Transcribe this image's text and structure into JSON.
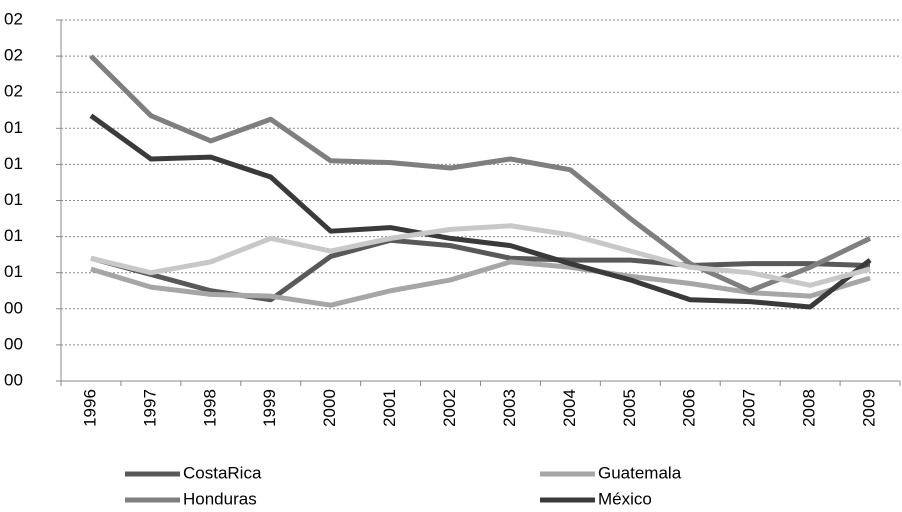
{
  "chart_data": {
    "type": "line",
    "categories": [
      "1996",
      "1997",
      "1998",
      "1999",
      "2000",
      "2001",
      "2002",
      "2003",
      "2004",
      "2005",
      "2006",
      "2007",
      "2008",
      "2009"
    ],
    "ylim": [
      0,
      2
    ],
    "yticks": [
      {
        "value": 0,
        "label": "00"
      },
      {
        "value": 0.2,
        "label": "00"
      },
      {
        "value": 0.4,
        "label": "00"
      },
      {
        "value": 0.6,
        "label": "01"
      },
      {
        "value": 0.8,
        "label": "01"
      },
      {
        "value": 1.0,
        "label": "01"
      },
      {
        "value": 1.2,
        "label": "01"
      },
      {
        "value": 1.4,
        "label": "01"
      },
      {
        "value": 1.6,
        "label": "02"
      },
      {
        "value": 1.8,
        "label": "02"
      },
      {
        "value": 2.0,
        "label": "02"
      }
    ],
    "grid": true,
    "series": [
      {
        "name": "CostaRica",
        "color": "#595959",
        "values": [
          0.68,
          0.59,
          0.5,
          0.45,
          0.69,
          0.78,
          0.75,
          0.68,
          0.67,
          0.67,
          0.64,
          0.65,
          0.65,
          0.64
        ]
      },
      {
        "name": "Guatemala",
        "color": "#a6a6a6",
        "values": [
          0.62,
          0.52,
          0.48,
          0.47,
          0.42,
          0.5,
          0.56,
          0.66,
          0.63,
          0.58,
          0.54,
          0.49,
          0.47,
          0.57
        ]
      },
      {
        "name": "Honduras",
        "color": "#7f7f7f",
        "values": [
          1.8,
          1.47,
          1.33,
          1.45,
          1.22,
          1.21,
          1.18,
          1.23,
          1.17,
          0.9,
          0.65,
          0.5,
          0.63,
          0.79
        ]
      },
      {
        "name": "México",
        "color": "#3a3a3a",
        "values": [
          1.47,
          1.23,
          1.24,
          1.13,
          0.83,
          0.85,
          0.79,
          0.75,
          0.65,
          0.56,
          0.45,
          0.44,
          0.41,
          0.67
        ]
      },
      {
        "color": "#c8c8c8",
        "values": [
          0.68,
          0.6,
          0.66,
          0.79,
          0.72,
          0.79,
          0.84,
          0.86,
          0.81,
          0.72,
          0.63,
          0.6,
          0.53,
          0.62
        ]
      }
    ]
  }
}
